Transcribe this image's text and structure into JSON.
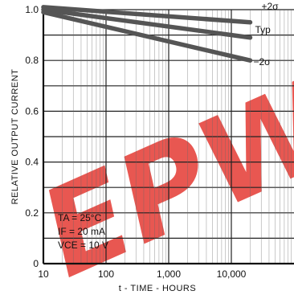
{
  "chart_data": {
    "type": "line",
    "x_scale": "log",
    "xlim": [
      10,
      100000
    ],
    "ylim": [
      0,
      1.0
    ],
    "grid": true,
    "xlabel": "t - TIME - HOURS",
    "ylabel": "RELATIVE OUTPUT CURRENT",
    "x_ticks": [
      {
        "value": 10,
        "label": "10"
      },
      {
        "value": 100,
        "label": "100"
      },
      {
        "value": 1000,
        "label": "1,000"
      },
      {
        "value": 10000,
        "label": "10,000"
      }
    ],
    "y_ticks": [
      {
        "value": 0,
        "label": "0"
      },
      {
        "value": 0.2,
        "label": "0.2"
      },
      {
        "value": 0.4,
        "label": "0.4"
      },
      {
        "value": 0.6,
        "label": "0.6"
      },
      {
        "value": 0.8,
        "label": "0.8"
      },
      {
        "value": 1.0,
        "label": "1.0"
      }
    ],
    "conditions": [
      "TA = 25°C",
      "IF = 20 mA",
      "VCE = 10 V"
    ],
    "series": [
      {
        "name": "+2σ",
        "x": [
          10,
          20000
        ],
        "values": [
          1.01,
          0.95
        ]
      },
      {
        "name": "Typ",
        "x": [
          10,
          20000
        ],
        "values": [
          1.0,
          0.89
        ]
      },
      {
        "name": "−2σ",
        "x": [
          10,
          20000
        ],
        "values": [
          0.99,
          0.8
        ]
      }
    ],
    "watermark": "EPW .com"
  }
}
